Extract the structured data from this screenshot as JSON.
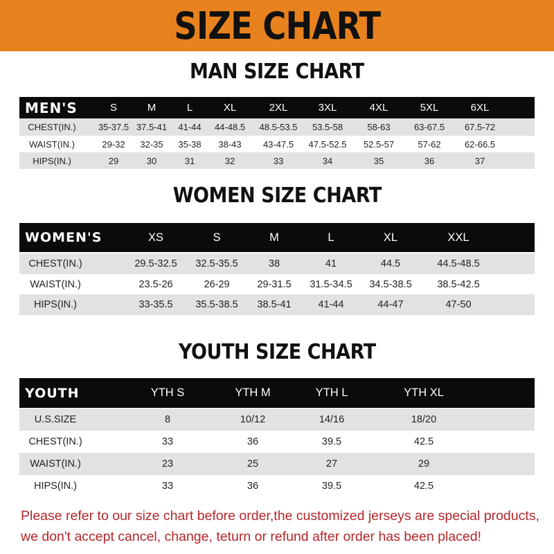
{
  "banner_title": "SIZE CHART",
  "men": {
    "title": "MAN SIZE CHART",
    "header": [
      "MEN'S",
      "S",
      "M",
      "L",
      "XL",
      "2XL",
      "3XL",
      "4XL",
      "5XL",
      "6XL"
    ],
    "rows": [
      [
        "CHEST(IN.)",
        "35-37.5",
        "37.5-41",
        "41-44",
        "44-48.5",
        "48.5-53.5",
        "53.5-58",
        "58-63",
        "63-67.5",
        "67.5-72"
      ],
      [
        "WAIST(IN.)",
        "29-32",
        "32-35",
        "35-38",
        "38-43",
        "43-47.5",
        "47.5-52.5",
        "52.5-57",
        "57-62",
        "62-66.5"
      ],
      [
        "HIPS(IN.)",
        "29",
        "30",
        "31",
        "32",
        "33",
        "34",
        "35",
        "36",
        "37"
      ]
    ]
  },
  "women": {
    "title": "WOMEN SIZE CHART",
    "header": [
      "WOMEN'S",
      "XS",
      "S",
      "M",
      "L",
      "XL",
      "XXL"
    ],
    "rows": [
      [
        "CHEST(IN.)",
        "29.5-32.5",
        "32.5-35.5",
        "38",
        "41",
        "44.5",
        "44.5-48.5"
      ],
      [
        "WAIST(IN.)",
        "23.5-26",
        "26-29",
        "29-31.5",
        "31.5-34.5",
        "34.5-38.5",
        "38.5-42.5"
      ],
      [
        "HIPS(IN.)",
        "33-35.5",
        "35.5-38.5",
        "38.5-41",
        "41-44",
        "44-47",
        "47-50"
      ]
    ]
  },
  "youth": {
    "title": "YOUTH SIZE CHART",
    "header": [
      "YOUTH",
      "YTH S",
      "YTH M",
      "YTH L",
      "YTH XL"
    ],
    "rows": [
      [
        "U.S.SIZE",
        "8",
        "10/12",
        "14/16",
        "18/20"
      ],
      [
        "CHEST(IN.)",
        "33",
        "36",
        "39.5",
        "42.5"
      ],
      [
        "WAIST(IN.)",
        "23",
        "25",
        "27",
        "29"
      ],
      [
        "HIPS(IN.)",
        "33",
        "36",
        "39.5",
        "42.5"
      ]
    ]
  },
  "footer": {
    "line1": "Please refer to our size chart before order,the customized jerseys are special products,",
    "line2": "we don't accept cancel, change, teturn or refund after order has been placed!"
  },
  "colors": {
    "banner": "#e8821e",
    "header_row": "#0d0a0a",
    "stripe": "#e2e2e2",
    "footer_text": "#b5262a"
  }
}
